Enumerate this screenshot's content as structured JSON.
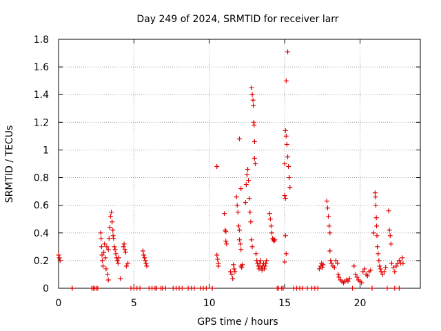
{
  "chart_data": {
    "type": "scatter",
    "title": "Day 249 of 2024, SRMTID for receiver larr",
    "xlabel": "GPS time / hours",
    "ylabel": "SRMTID / TECUs",
    "xlim": [
      0,
      24
    ],
    "ylim": [
      0,
      1.8
    ],
    "xticks": [
      0,
      5,
      10,
      15,
      20
    ],
    "xtick_labels": [
      "0",
      "5",
      "10",
      "15",
      "20"
    ],
    "yticks": [
      0,
      0.2,
      0.4,
      0.6,
      0.8,
      1.0,
      1.2,
      1.4,
      1.6,
      1.8
    ],
    "ytick_labels": [
      "0",
      "0.2",
      "0.4",
      "0.6",
      "0.8",
      "1",
      "1.2",
      "1.4",
      "1.6",
      "1.8"
    ],
    "grid": true,
    "marker": "+",
    "series": [
      {
        "name": "SRMTID",
        "color": "#e00000",
        "points": [
          [
            0.0,
            0.24
          ],
          [
            0.05,
            0.22
          ],
          [
            0.1,
            0.2
          ],
          [
            0.9,
            0.0
          ],
          [
            2.2,
            0.0
          ],
          [
            2.4,
            0.0
          ],
          [
            2.6,
            0.0
          ],
          [
            2.8,
            0.4
          ],
          [
            2.82,
            0.36
          ],
          [
            2.85,
            0.3
          ],
          [
            2.88,
            0.24
          ],
          [
            2.9,
            0.2
          ],
          [
            2.95,
            0.16
          ],
          [
            3.0,
            0.26
          ],
          [
            3.05,
            0.32
          ],
          [
            3.1,
            0.22
          ],
          [
            3.15,
            0.14
          ],
          [
            3.2,
            0.3
          ],
          [
            3.25,
            0.1
          ],
          [
            3.3,
            0.06
          ],
          [
            3.3,
            0.28
          ],
          [
            3.35,
            0.36
          ],
          [
            3.4,
            0.44
          ],
          [
            3.45,
            0.52
          ],
          [
            3.5,
            0.55
          ],
          [
            3.55,
            0.48
          ],
          [
            3.6,
            0.42
          ],
          [
            3.62,
            0.38
          ],
          [
            3.65,
            0.36
          ],
          [
            3.7,
            0.3
          ],
          [
            3.75,
            0.28
          ],
          [
            3.8,
            0.25
          ],
          [
            3.85,
            0.22
          ],
          [
            3.9,
            0.2
          ],
          [
            3.95,
            0.18
          ],
          [
            4.0,
            0.22
          ],
          [
            4.1,
            0.07
          ],
          [
            4.3,
            0.3
          ],
          [
            4.35,
            0.32
          ],
          [
            4.4,
            0.28
          ],
          [
            4.45,
            0.26
          ],
          [
            4.5,
            0.16
          ],
          [
            4.6,
            0.18
          ],
          [
            4.8,
            0.0
          ],
          [
            5.0,
            0.0
          ],
          [
            5.2,
            0.0
          ],
          [
            5.4,
            0.0
          ],
          [
            5.6,
            0.27
          ],
          [
            5.65,
            0.24
          ],
          [
            5.7,
            0.22
          ],
          [
            5.75,
            0.2
          ],
          [
            5.8,
            0.18
          ],
          [
            5.85,
            0.16
          ],
          [
            6.0,
            0.0
          ],
          [
            6.2,
            0.0
          ],
          [
            6.5,
            0.0
          ],
          [
            6.8,
            0.0
          ],
          [
            7.1,
            0.0
          ],
          [
            7.6,
            0.0
          ],
          [
            7.8,
            0.0
          ],
          [
            8.2,
            0.0
          ],
          [
            8.6,
            0.0
          ],
          [
            9.0,
            0.0
          ],
          [
            9.4,
            0.0
          ],
          [
            9.8,
            0.0
          ],
          [
            10.2,
            0.0
          ],
          [
            10.5,
            0.88
          ],
          [
            10.5,
            0.24
          ],
          [
            10.55,
            0.21
          ],
          [
            10.6,
            0.18
          ],
          [
            10.6,
            0.16
          ],
          [
            11.0,
            0.54
          ],
          [
            11.05,
            0.42
          ],
          [
            11.1,
            0.41
          ],
          [
            11.1,
            0.34
          ],
          [
            11.15,
            0.32
          ],
          [
            11.4,
            0.12
          ],
          [
            11.5,
            0.1
          ],
          [
            11.55,
            0.07
          ],
          [
            11.6,
            0.17
          ],
          [
            11.65,
            0.14
          ],
          [
            11.7,
            0.12
          ],
          [
            11.8,
            0.66
          ],
          [
            11.85,
            0.6
          ],
          [
            11.9,
            0.55
          ],
          [
            11.95,
            0.45
          ],
          [
            12.0,
            0.42
          ],
          [
            12.0,
            0.35
          ],
          [
            12.05,
            0.32
          ],
          [
            12.1,
            0.28
          ],
          [
            12.0,
            1.08
          ],
          [
            12.1,
            0.72
          ],
          [
            12.1,
            0.16
          ],
          [
            12.15,
            0.15
          ],
          [
            12.2,
            0.17
          ],
          [
            12.4,
            0.62
          ],
          [
            12.45,
            0.75
          ],
          [
            12.5,
            0.82
          ],
          [
            12.55,
            0.86
          ],
          [
            12.6,
            0.78
          ],
          [
            12.65,
            0.65
          ],
          [
            12.7,
            0.55
          ],
          [
            12.75,
            0.48
          ],
          [
            12.8,
            0.35
          ],
          [
            12.85,
            0.3
          ],
          [
            12.8,
            1.45
          ],
          [
            12.85,
            1.4
          ],
          [
            12.9,
            1.36
          ],
          [
            12.92,
            1.32
          ],
          [
            12.95,
            1.2
          ],
          [
            12.97,
            1.18
          ],
          [
            13.0,
            1.06
          ],
          [
            13.0,
            0.94
          ],
          [
            13.05,
            0.9
          ],
          [
            13.1,
            0.25
          ],
          [
            13.15,
            0.2
          ],
          [
            13.2,
            0.18
          ],
          [
            13.25,
            0.16
          ],
          [
            13.3,
            0.14
          ],
          [
            13.35,
            0.18
          ],
          [
            13.4,
            0.2
          ],
          [
            13.45,
            0.15
          ],
          [
            13.5,
            0.13
          ],
          [
            13.55,
            0.16
          ],
          [
            13.6,
            0.18
          ],
          [
            13.65,
            0.14
          ],
          [
            13.7,
            0.16
          ],
          [
            13.75,
            0.18
          ],
          [
            13.8,
            0.2
          ],
          [
            14.0,
            0.54
          ],
          [
            14.05,
            0.5
          ],
          [
            14.1,
            0.45
          ],
          [
            14.15,
            0.4
          ],
          [
            14.2,
            0.36
          ],
          [
            14.25,
            0.35
          ],
          [
            14.3,
            0.34
          ],
          [
            14.35,
            0.35
          ],
          [
            14.5,
            0.0
          ],
          [
            14.8,
            0.0
          ],
          [
            15.0,
            0.9
          ],
          [
            15.05,
            1.14
          ],
          [
            15.1,
            1.1
          ],
          [
            15.15,
            1.04
          ],
          [
            15.2,
            0.95
          ],
          [
            15.25,
            0.88
          ],
          [
            15.3,
            0.8
          ],
          [
            15.35,
            0.73
          ],
          [
            15.1,
            1.5
          ],
          [
            15.2,
            1.71
          ],
          [
            15.05,
            0.38
          ],
          [
            15.1,
            0.25
          ],
          [
            15.0,
            0.19
          ],
          [
            15.0,
            0.67
          ],
          [
            15.05,
            0.65
          ],
          [
            15.6,
            0.0
          ],
          [
            16.0,
            0.0
          ],
          [
            16.5,
            0.0
          ],
          [
            17.0,
            0.0
          ],
          [
            17.3,
            0.14
          ],
          [
            17.4,
            0.16
          ],
          [
            17.45,
            0.18
          ],
          [
            17.5,
            0.15
          ],
          [
            17.55,
            0.17
          ],
          [
            17.8,
            0.63
          ],
          [
            17.85,
            0.58
          ],
          [
            17.9,
            0.52
          ],
          [
            17.95,
            0.45
          ],
          [
            18.0,
            0.4
          ],
          [
            18.0,
            0.27
          ],
          [
            18.05,
            0.2
          ],
          [
            18.1,
            0.18
          ],
          [
            18.2,
            0.16
          ],
          [
            18.3,
            0.15
          ],
          [
            18.4,
            0.2
          ],
          [
            18.5,
            0.18
          ],
          [
            18.55,
            0.1
          ],
          [
            18.6,
            0.08
          ],
          [
            18.7,
            0.06
          ],
          [
            18.8,
            0.05
          ],
          [
            18.9,
            0.04
          ],
          [
            19.0,
            0.05
          ],
          [
            19.1,
            0.06
          ],
          [
            19.2,
            0.05
          ],
          [
            19.3,
            0.07
          ],
          [
            19.6,
            0.16
          ],
          [
            19.7,
            0.1
          ],
          [
            19.8,
            0.08
          ],
          [
            19.9,
            0.06
          ],
          [
            20.0,
            0.05
          ],
          [
            20.1,
            0.04
          ],
          [
            20.2,
            0.12
          ],
          [
            20.3,
            0.14
          ],
          [
            20.4,
            0.1
          ],
          [
            20.5,
            0.09
          ],
          [
            20.6,
            0.12
          ],
          [
            20.7,
            0.13
          ],
          [
            20.9,
            0.4
          ],
          [
            21.0,
            0.69
          ],
          [
            21.02,
            0.66
          ],
          [
            21.05,
            0.6
          ],
          [
            21.08,
            0.51
          ],
          [
            21.1,
            0.45
          ],
          [
            21.12,
            0.38
          ],
          [
            21.15,
            0.3
          ],
          [
            21.2,
            0.25
          ],
          [
            21.25,
            0.2
          ],
          [
            21.3,
            0.16
          ],
          [
            21.35,
            0.14
          ],
          [
            21.4,
            0.12
          ],
          [
            21.5,
            0.1
          ],
          [
            21.6,
            0.12
          ],
          [
            21.7,
            0.15
          ],
          [
            21.9,
            0.56
          ],
          [
            21.95,
            0.42
          ],
          [
            22.0,
            0.38
          ],
          [
            22.05,
            0.32
          ],
          [
            22.1,
            0.18
          ],
          [
            22.2,
            0.15
          ],
          [
            22.3,
            0.12
          ],
          [
            22.4,
            0.16
          ],
          [
            22.5,
            0.18
          ],
          [
            22.6,
            0.2
          ],
          [
            22.7,
            0.18
          ],
          [
            22.8,
            0.22
          ],
          [
            22.85,
            0.18
          ],
          [
            0.9,
            0.0
          ],
          [
            2.3,
            0.0
          ],
          [
            2.5,
            0.0
          ],
          [
            6.4,
            0.0
          ],
          [
            6.9,
            0.0
          ],
          [
            8.0,
            0.0
          ],
          [
            8.8,
            0.0
          ],
          [
            9.6,
            0.0
          ],
          [
            14.6,
            0.0
          ],
          [
            14.9,
            0.0
          ],
          [
            15.8,
            0.0
          ],
          [
            16.2,
            0.0
          ],
          [
            16.8,
            0.0
          ],
          [
            17.2,
            0.0
          ],
          [
            19.5,
            0.0
          ],
          [
            20.8,
            0.0
          ],
          [
            21.8,
            0.0
          ],
          [
            22.3,
            0.0
          ],
          [
            22.6,
            0.0
          ]
        ]
      }
    ]
  }
}
